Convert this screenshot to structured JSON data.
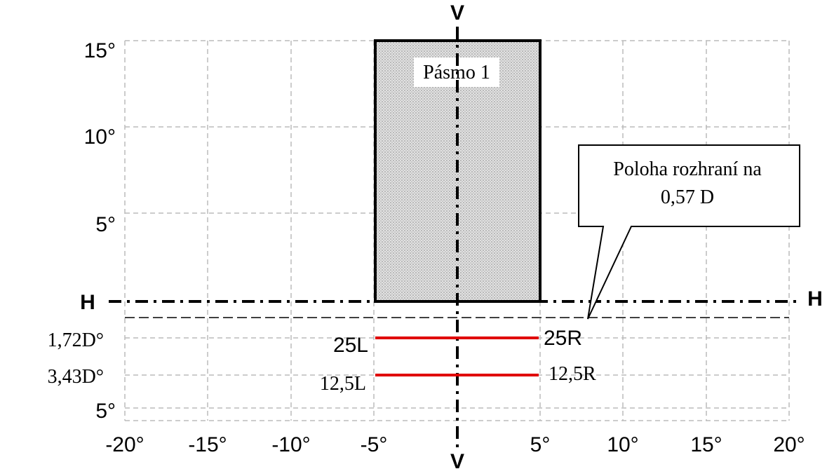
{
  "axes": {
    "v_top": "V",
    "v_bottom": "V",
    "h_left": "H",
    "h_right": "H"
  },
  "y_labels": [
    "15°",
    "10°",
    "5°",
    "1,72D°",
    "3,43D°",
    "5°"
  ],
  "x_labels": [
    "-20°",
    "-15°",
    "-10°",
    "-5°",
    "5°",
    "10°",
    "15°",
    "20°"
  ],
  "zone": {
    "label": "Pásmo 1"
  },
  "callout": {
    "lines": [
      "Poloha rozhraní na",
      "0,57 D"
    ]
  },
  "lines": [
    {
      "left": "25L",
      "right": "25R"
    },
    {
      "left": "12,5L",
      "right": "12,5R"
    }
  ]
}
